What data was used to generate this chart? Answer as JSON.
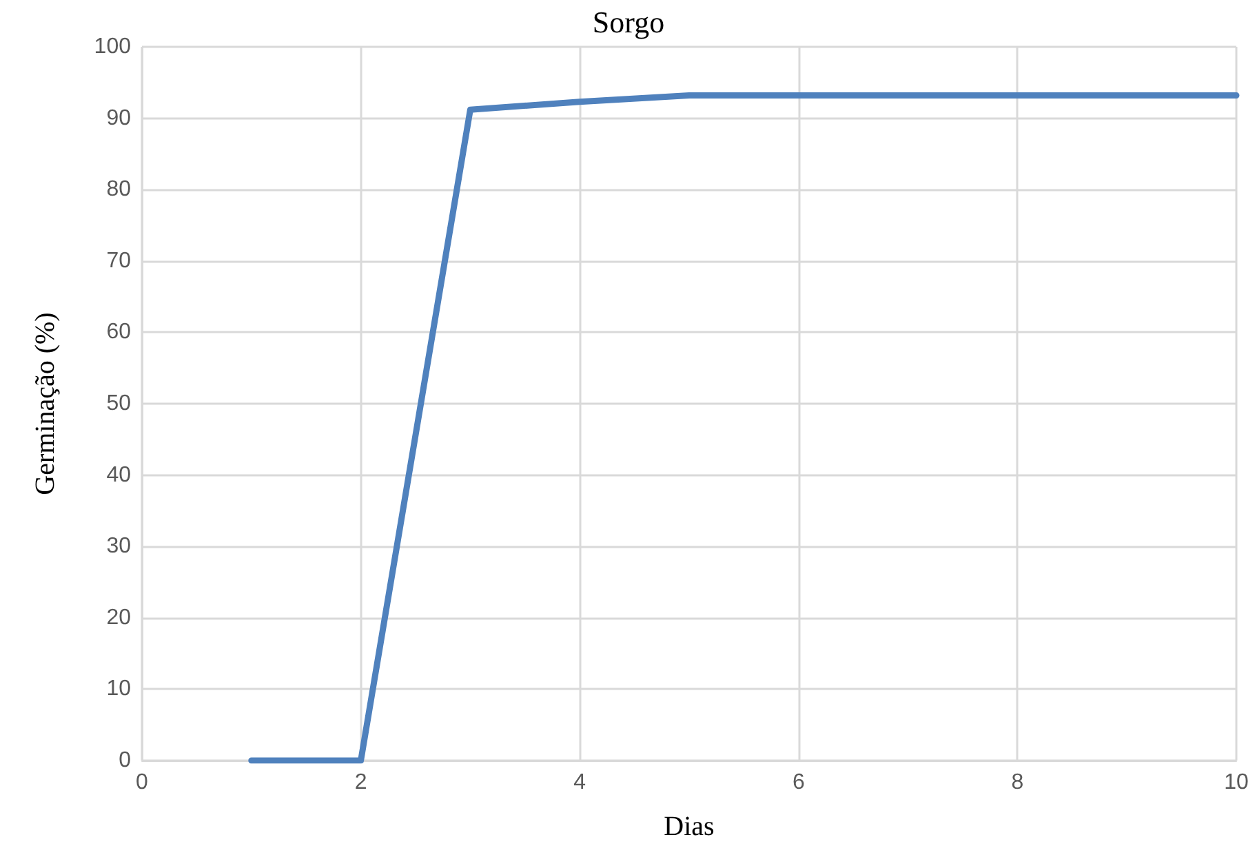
{
  "chart_data": {
    "type": "line",
    "title": "Sorgo",
    "xlabel": "Dias",
    "ylabel": "Germinação (%)",
    "x": [
      1,
      2,
      3,
      4,
      5,
      6,
      7,
      8,
      9,
      10
    ],
    "series": [
      {
        "color": "#4f81bd",
        "values": [
          0,
          0,
          91.2,
          92.3,
          93.2,
          93.2,
          93.2,
          93.2,
          93.2,
          93.2
        ]
      }
    ],
    "xlim": [
      0,
      10
    ],
    "xticks": [
      0,
      2,
      4,
      6,
      8,
      10
    ],
    "ylim": [
      0,
      100
    ],
    "yticks": [
      0,
      10,
      20,
      30,
      40,
      50,
      60,
      70,
      80,
      90,
      100
    ],
    "grid": true,
    "marker": "none",
    "line_style": "solid"
  }
}
